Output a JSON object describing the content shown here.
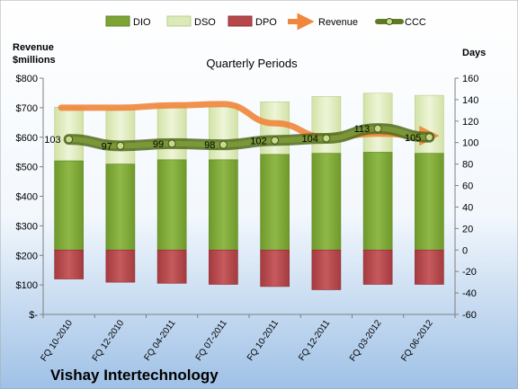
{
  "chart_data": {
    "type": "bar",
    "title": "Quarterly Periods",
    "company": "Vishay Intertechnology",
    "left_axis_label_line1": "Revenue",
    "left_axis_label_line2": "$millions",
    "right_axis_label": "Days",
    "categories": [
      "FQ 10-2010",
      "FQ 12-2010",
      "FQ 04-2011",
      "FQ 07-2011",
      "FQ 10-2011",
      "FQ 12-2011",
      "FQ 03-2012",
      "FQ 06-2012"
    ],
    "left_ticks": [
      "$-",
      "$100",
      "$200",
      "$300",
      "$400",
      "$500",
      "$600",
      "$700",
      "$800"
    ],
    "left_ylim": [
      0,
      800
    ],
    "right_ylim": [
      -60,
      160
    ],
    "right_ticks": [
      -60,
      -40,
      -20,
      0,
      20,
      40,
      60,
      80,
      100,
      120,
      140,
      160
    ],
    "series": [
      {
        "name": "DIO",
        "axis": "right",
        "values": [
          83,
          80,
          84,
          84,
          89,
          90,
          91,
          90
        ]
      },
      {
        "name": "DSO",
        "axis": "right",
        "values": [
          50,
          51,
          50,
          50,
          49,
          53,
          55,
          54
        ]
      },
      {
        "name": "DPO",
        "axis": "right",
        "values": [
          -27,
          -30,
          -31,
          -32,
          -34,
          -37,
          -32,
          -32
        ]
      },
      {
        "name": "Revenue",
        "axis": "left",
        "values": [
          700,
          700,
          708,
          712,
          647,
          600,
          612,
          605
        ]
      },
      {
        "name": "CCC",
        "axis": "right",
        "values": [
          103,
          97,
          99,
          98,
          102,
          104,
          113,
          105
        ]
      }
    ],
    "colors": {
      "DIO": "#7da535",
      "DSO": "#dce9b8",
      "DPO": "#b7474b",
      "Revenue": "#f0873a",
      "CCC": "#6f8a2c",
      "background_top": "#ffffff",
      "background_bottom": "#9fc1e6"
    },
    "legend_position": "top",
    "grid": false
  }
}
